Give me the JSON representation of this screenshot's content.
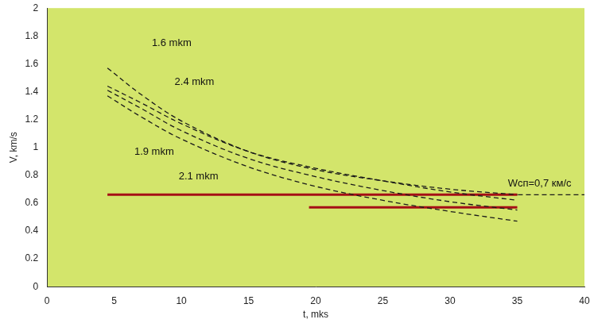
{
  "chart_data": {
    "type": "line",
    "x_label": "t, mks",
    "y_label": "V, km/s",
    "xlim": [
      0,
      40
    ],
    "xticks": [
      0,
      5,
      10,
      15,
      20,
      25,
      30,
      35,
      40
    ],
    "ylim": [
      0,
      2
    ],
    "yticks": [
      0,
      0.2,
      0.4,
      0.6,
      0.8,
      1,
      1.2,
      1.4,
      1.6,
      1.8,
      2
    ],
    "grid": false,
    "series": [
      {
        "color": "#1a1a1a",
        "line_style": "dashed",
        "x": [
          4.5,
          7,
          10,
          15,
          20,
          25,
          30,
          35
        ],
        "values": [
          1.57,
          1.38,
          1.19,
          0.97,
          0.84,
          0.76,
          0.7,
          0.66
        ]
      },
      {
        "color": "#1a1a1a",
        "line_style": "dashed",
        "x": [
          4.5,
          7,
          10,
          15,
          20,
          25,
          30,
          35
        ],
        "values": [
          1.44,
          1.32,
          1.17,
          0.97,
          0.85,
          0.76,
          0.68,
          0.62
        ]
      },
      {
        "color": "#1a1a1a",
        "line_style": "dashed",
        "x": [
          4.5,
          7,
          10,
          15,
          20,
          25,
          30,
          35
        ],
        "values": [
          1.41,
          1.28,
          1.12,
          0.92,
          0.79,
          0.69,
          0.61,
          0.55
        ]
      },
      {
        "color": "#1a1a1a",
        "line_style": "dashed",
        "x": [
          4.5,
          7,
          10,
          15,
          20,
          25,
          30,
          35
        ],
        "values": [
          1.37,
          1.22,
          1.06,
          0.86,
          0.72,
          0.62,
          0.54,
          0.47
        ]
      },
      {
        "color": "#a50f15",
        "line_style": "solid",
        "x": [
          4.5,
          35
        ],
        "values": [
          0.66,
          0.66
        ]
      },
      {
        "color": "#a50f15",
        "line_style": "solid",
        "x": [
          19.5,
          35
        ],
        "values": [
          0.57,
          0.57
        ]
      },
      {
        "color": "#1a1a1a",
        "line_style": "dashed",
        "x": [
          25,
          40
        ],
        "values": [
          0.66,
          0.66
        ]
      }
    ],
    "annotations": [
      {
        "text": "1.6 mkm",
        "x": 7.8,
        "y": 1.75
      },
      {
        "text": "2.4 mkm",
        "x": 9.5,
        "y": 1.47
      },
      {
        "text": "1.9 mkm",
        "x": 6.5,
        "y": 0.97
      },
      {
        "text": "2.1 mkm",
        "x": 9.8,
        "y": 0.79
      },
      {
        "text": "Wсп=0,7 км/с",
        "x": 34.3,
        "y": 0.74
      }
    ]
  }
}
